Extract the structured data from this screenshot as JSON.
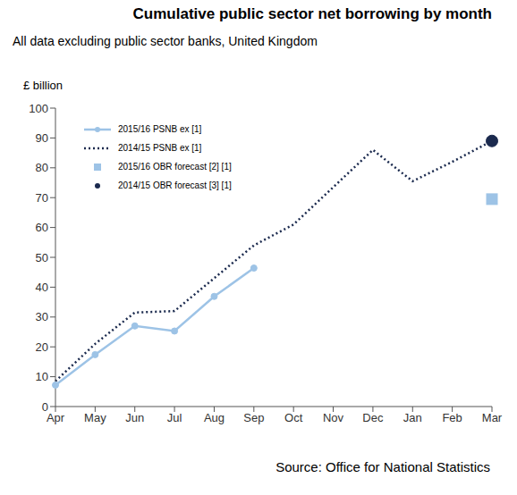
{
  "chart_data": {
    "type": "line",
    "title": "Cumulative public sector net borrowing by month",
    "subtitle": "All data excluding public sector banks, United Kingdom",
    "y_label": "£ billion",
    "source": "Source: Office for National Statistics",
    "categories": [
      "Apr",
      "May",
      "Jun",
      "Jul",
      "Aug",
      "Sep",
      "Oct",
      "Nov",
      "Dec",
      "Jan",
      "Feb",
      "Mar"
    ],
    "series": [
      {
        "name": "2015/16 PSNB ex [1]",
        "type": "line",
        "color": "#9dc3e6",
        "marker": "circle",
        "line_style": "solid",
        "values": [
          7.2,
          17.4,
          27.0,
          25.3,
          36.9,
          46.4,
          null,
          null,
          null,
          null,
          null,
          null
        ]
      },
      {
        "name": "2014/15 PSNB ex [1]",
        "type": "line",
        "color": "#1b2a4e",
        "marker": "none",
        "line_style": "dotted",
        "values": [
          8.5,
          21,
          31.5,
          32,
          43,
          54,
          61,
          73.5,
          86,
          75.5,
          82,
          89
        ]
      },
      {
        "name": "2015/16 OBR forecast [2] [1]",
        "type": "scatter",
        "color": "#9dc3e6",
        "marker": "square",
        "values": [
          null,
          null,
          null,
          null,
          null,
          null,
          null,
          null,
          null,
          null,
          null,
          69.5
        ]
      },
      {
        "name": "2014/15 OBR forecast [3] [1]",
        "type": "scatter",
        "color": "#1b2a4e",
        "marker": "circle",
        "values": [
          null,
          null,
          null,
          null,
          null,
          null,
          null,
          null,
          null,
          null,
          null,
          89
        ]
      }
    ],
    "ylim": [
      0,
      100
    ],
    "yticks": [
      0,
      10,
      20,
      30,
      40,
      50,
      60,
      70,
      80,
      90,
      100
    ],
    "grid": false,
    "legend": "top-left"
  }
}
